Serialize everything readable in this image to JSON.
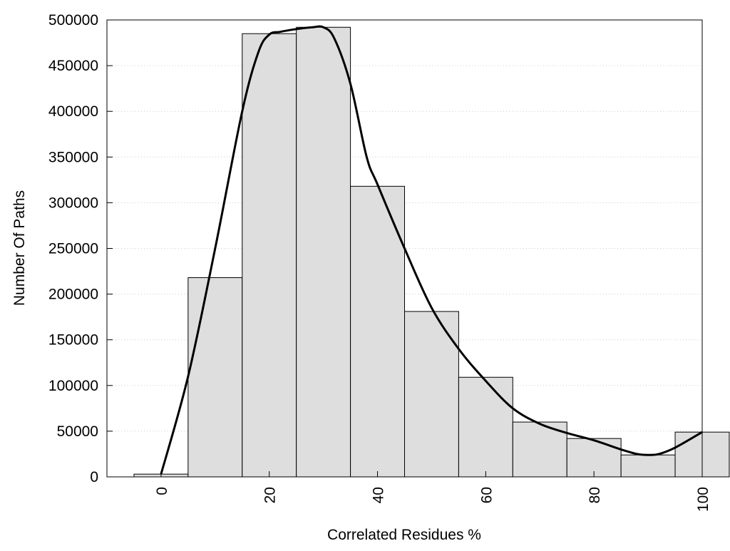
{
  "chart_data": {
    "type": "bar",
    "title": "",
    "xlabel": "Correlated Residues %",
    "ylabel": "Number Of Paths",
    "xlim": [
      -10,
      100
    ],
    "ylim": [
      0,
      500000
    ],
    "x_ticks": [
      "0",
      "20",
      "40",
      "60",
      "80",
      "100"
    ],
    "y_ticks": [
      "0",
      "50000",
      "100000",
      "150000",
      "200000",
      "250000",
      "300000",
      "350000",
      "400000",
      "450000",
      "500000"
    ],
    "grid": "horizontal dotted",
    "legend": "none",
    "bin_width": 10,
    "bins": [
      {
        "center": 0,
        "value": 3000
      },
      {
        "center": 10,
        "value": 218000
      },
      {
        "center": 20,
        "value": 485000
      },
      {
        "center": 30,
        "value": 492000
      },
      {
        "center": 40,
        "value": 318000
      },
      {
        "center": 50,
        "value": 181000
      },
      {
        "center": 60,
        "value": 109000
      },
      {
        "center": 70,
        "value": 60000
      },
      {
        "center": 80,
        "value": 42000
      },
      {
        "center": 90,
        "value": 24000
      },
      {
        "center": 100,
        "value": 49000
      }
    ],
    "curve": {
      "x": [
        0,
        5,
        10,
        15,
        18,
        20,
        22,
        25,
        28,
        30,
        32,
        35,
        38,
        40,
        45,
        50,
        55,
        60,
        65,
        70,
        75,
        80,
        85,
        88,
        90,
        92,
        95,
        100
      ],
      "y": [
        3000,
        110000,
        250000,
        400000,
        465000,
        484000,
        487000,
        490000,
        492000,
        492000,
        480000,
        430000,
        350000,
        320000,
        250000,
        185000,
        140000,
        105000,
        75000,
        58000,
        48000,
        40000,
        30000,
        25000,
        24000,
        25000,
        32000,
        49000
      ]
    },
    "colors": {
      "bar_fill": "#dedede",
      "bar_stroke": "#000000",
      "curve": "#000000",
      "grid": "#cccccc"
    }
  }
}
